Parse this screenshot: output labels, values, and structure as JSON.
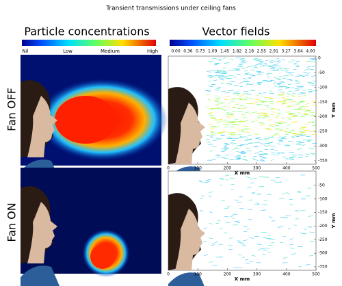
{
  "title": "Transient transmissions under ceiling fans",
  "columns": [
    "Particle concentrations",
    "Vector fields"
  ],
  "rows": [
    "Fan OFF",
    "Fan ON"
  ],
  "concentration_scale": [
    "Nil",
    "Low",
    "Medium",
    "High"
  ],
  "velocity_scale": [
    "0.00",
    "0.36",
    "0.73",
    "1.09",
    "1.45",
    "1.82",
    "2.18",
    "2.55",
    "2.91",
    "3.27",
    "3.64",
    "4.00"
  ],
  "plots": [
    {
      "x_label": "X mm",
      "y_label": "Y mm",
      "x_ticks": [
        "0",
        "100",
        "200",
        "300",
        "400",
        "500"
      ],
      "y_ticks": [
        "0",
        "-50",
        "-100",
        "-150",
        "-200",
        "-250",
        "-300",
        "-350"
      ]
    },
    {
      "x_label": "X mm",
      "y_label": "Y mm",
      "x_ticks": [
        "0",
        "100",
        "200",
        "300",
        "400",
        "500"
      ],
      "y_ticks": [
        "-50",
        "-100",
        "-150",
        "-200",
        "-250",
        "-300",
        "-350"
      ]
    }
  ]
}
